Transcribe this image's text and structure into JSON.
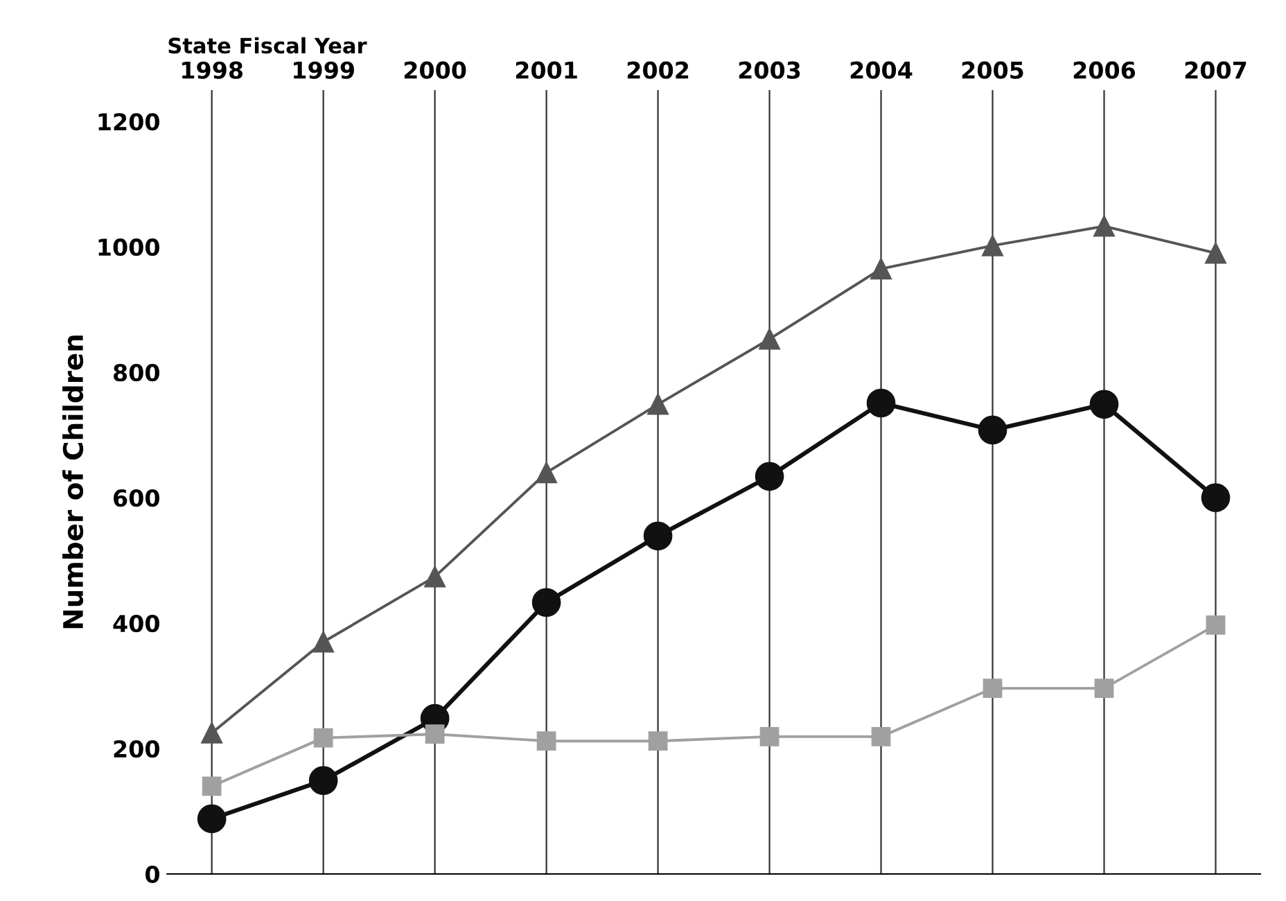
{
  "chart_data": {
    "type": "line",
    "xlabel": "State Fiscal Year",
    "ylabel": "Number of Children",
    "categories": [
      "1998",
      "1999",
      "2000",
      "2001",
      "2002",
      "2003",
      "2004",
      "2005",
      "2006",
      "2007"
    ],
    "series": [
      {
        "color": "#555555",
        "marker": "triangle",
        "values": [
          225,
          370,
          474,
          640,
          749,
          853,
          965,
          1002,
          1033,
          990
        ]
      },
      {
        "color": "#111111",
        "marker": "circle",
        "values": [
          88,
          149,
          248,
          433,
          539,
          634,
          751,
          708,
          749,
          600
        ]
      },
      {
        "color": "#a0a0a0",
        "marker": "square",
        "values": [
          140,
          217,
          223,
          212,
          212,
          219,
          219,
          296,
          296,
          397
        ]
      }
    ],
    "ylim": [
      0,
      1250
    ],
    "yticks": [
      0,
      200,
      400,
      600,
      800,
      1000,
      1200
    ],
    "grid": "x",
    "line_style": "solid"
  }
}
